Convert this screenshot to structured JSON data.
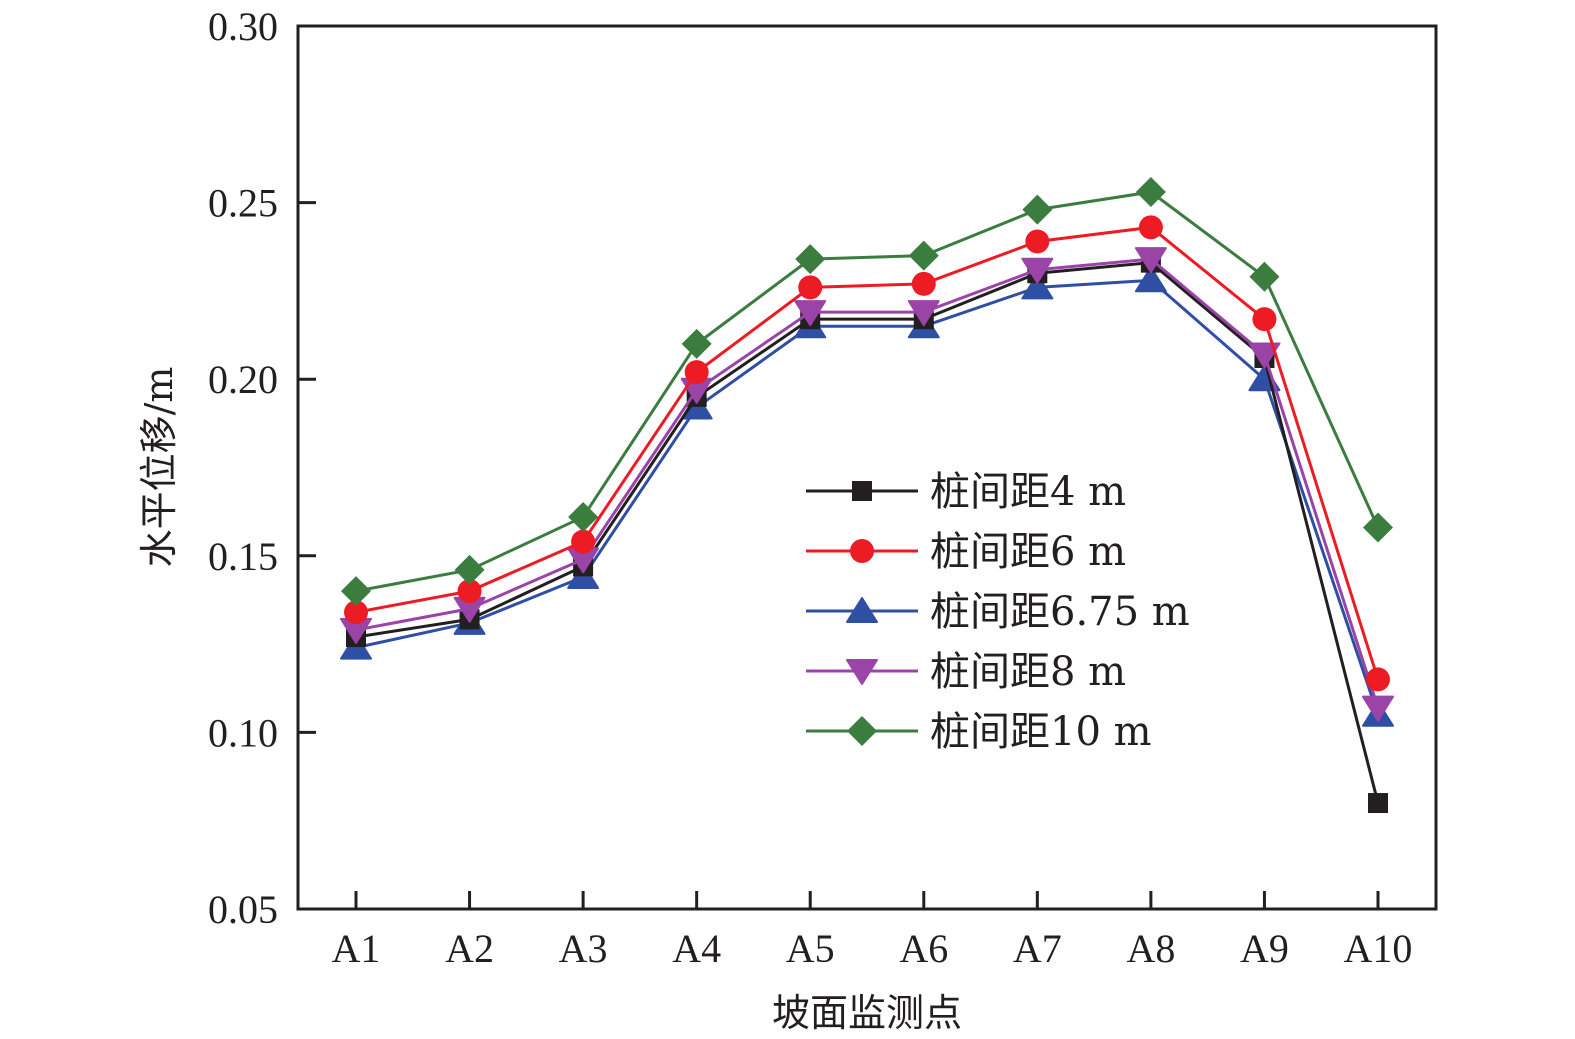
{
  "chart_data": {
    "type": "line",
    "title": "",
    "xlabel": "坡面监测点",
    "ylabel": "水平位移/m",
    "categories": [
      "A1",
      "A2",
      "A3",
      "A4",
      "A5",
      "A6",
      "A7",
      "A8",
      "A9",
      "A10"
    ],
    "ylim": [
      0.05,
      0.3
    ],
    "yticks": [
      0.05,
      0.1,
      0.15,
      0.2,
      0.25,
      0.3
    ],
    "ytick_labels": [
      "0.05",
      "0.10",
      "0.15",
      "0.20",
      "0.25",
      "0.30"
    ],
    "grid": false,
    "legend_position": "center-right",
    "series": [
      {
        "name": "桩间距4 m",
        "color": "#231f20",
        "marker": "square",
        "values": [
          0.127,
          0.132,
          0.147,
          0.195,
          0.217,
          0.217,
          0.23,
          0.233,
          0.206,
          0.08
        ]
      },
      {
        "name": "桩间距6 m",
        "color": "#ed1c24",
        "marker": "circle",
        "values": [
          0.134,
          0.14,
          0.154,
          0.202,
          0.226,
          0.227,
          0.239,
          0.243,
          0.217,
          0.115
        ]
      },
      {
        "name": "桩间距6.75 m",
        "color": "#2e4fa3",
        "marker": "triangle-up",
        "values": [
          0.124,
          0.131,
          0.144,
          0.192,
          0.215,
          0.215,
          0.226,
          0.228,
          0.2,
          0.105
        ]
      },
      {
        "name": "桩间距8 m",
        "color": "#9b44a8",
        "marker": "triangle-down",
        "values": [
          0.129,
          0.135,
          0.149,
          0.197,
          0.219,
          0.219,
          0.231,
          0.234,
          0.207,
          0.107
        ]
      },
      {
        "name": "桩间距10 m",
        "color": "#3a7d3e",
        "marker": "diamond",
        "values": [
          0.14,
          0.146,
          0.161,
          0.21,
          0.234,
          0.235,
          0.248,
          0.253,
          0.229,
          0.158
        ]
      }
    ]
  }
}
